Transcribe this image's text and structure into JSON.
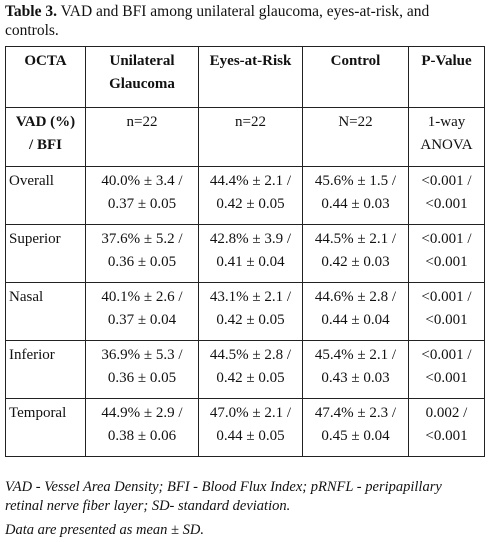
{
  "caption": {
    "label": "Table 3.",
    "text": "VAD and BFI among unilateral glaucoma, eyes-at-risk, and controls."
  },
  "table": {
    "header": [
      [
        "OCTA"
      ],
      [
        "Unilateral",
        "Glaucoma"
      ],
      [
        "Eyes-at-Risk"
      ],
      [
        "Control"
      ],
      [
        "P-Value"
      ]
    ],
    "subheader": [
      [
        "VAD (%)",
        "/ BFI"
      ],
      [
        "n=22"
      ],
      [
        "n=22"
      ],
      [
        "N=22"
      ],
      [
        "1-way",
        "ANOVA"
      ]
    ],
    "rows": [
      [
        [
          "Overall"
        ],
        [
          "40.0% ± 3.4 /",
          "0.37 ± 0.05"
        ],
        [
          "44.4% ± 2.1 /",
          "0.42 ± 0.05"
        ],
        [
          "45.6% ± 1.5 /",
          "0.44 ± 0.03"
        ],
        [
          "<0.001 /",
          "<0.001"
        ]
      ],
      [
        [
          "Superior"
        ],
        [
          "37.6% ± 5.2 /",
          "0.36 ± 0.05"
        ],
        [
          "42.8% ± 3.9 /",
          "0.41 ± 0.04"
        ],
        [
          "44.5% ± 2.1 /",
          "0.42 ± 0.03"
        ],
        [
          "<0.001 /",
          "<0.001"
        ]
      ],
      [
        [
          "Nasal"
        ],
        [
          "40.1% ± 2.6 /",
          "0.37 ± 0.04"
        ],
        [
          "43.1% ± 2.1 /",
          "0.42 ± 0.05"
        ],
        [
          "44.6% ± 2.8 /",
          "0.44 ± 0.04"
        ],
        [
          "<0.001 /",
          "<0.001"
        ]
      ],
      [
        [
          "Inferior"
        ],
        [
          "36.9% ± 5.3 /",
          "0.36 ± 0.05"
        ],
        [
          "44.5% ± 2.8 /",
          "0.42 ± 0.05"
        ],
        [
          "45.4% ± 2.1 /",
          "0.43 ± 0.03"
        ],
        [
          "<0.001 /",
          "<0.001"
        ]
      ],
      [
        [
          "Temporal"
        ],
        [
          "44.9% ± 2.9 /",
          "0.38 ± 0.06"
        ],
        [
          "47.0% ± 2.1 /",
          "0.44 ± 0.05"
        ],
        [
          "47.4% ± 2.3 /",
          "0.45 ± 0.04"
        ],
        [
          "0.002 /",
          "<0.001"
        ]
      ]
    ]
  },
  "footnotes": [
    "VAD - Vessel Area Density; BFI - Blood Flux Index; pRNFL - peripapillary retinal nerve fiber layer; SD- standard deviation.",
    "Data are presented as mean ± SD."
  ]
}
